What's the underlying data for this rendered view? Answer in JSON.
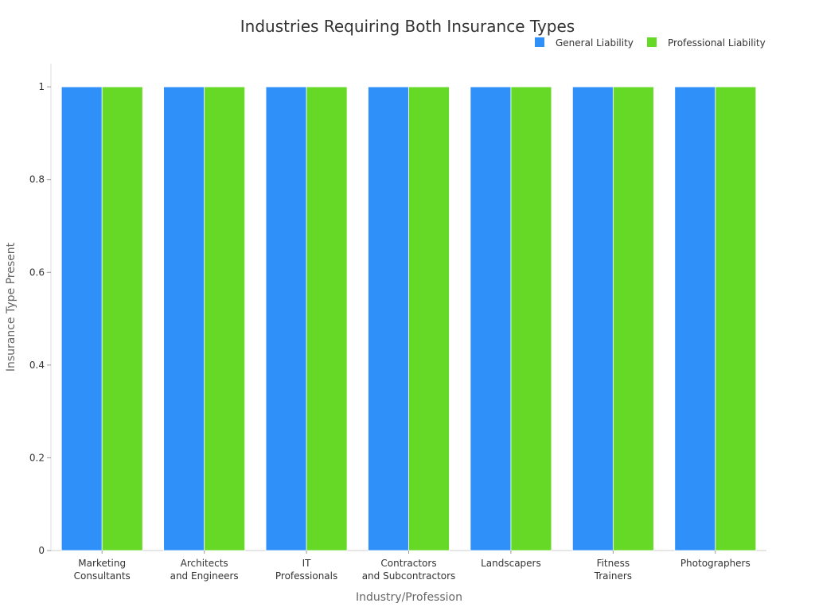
{
  "chart_data": {
    "type": "bar",
    "title": "Industries Requiring Both Insurance Types",
    "xlabel": "Industry/Profession",
    "ylabel": "Insurance Type Present",
    "categories": [
      [
        "Marketing",
        "Consultants"
      ],
      [
        "Architects",
        "and Engineers"
      ],
      [
        "IT",
        "Professionals"
      ],
      [
        "Contractors",
        "and Subcontractors"
      ],
      [
        "Landscapers"
      ],
      [
        "Fitness",
        "Trainers"
      ],
      [
        "Photographers"
      ]
    ],
    "series": [
      {
        "name": "General Liability",
        "color": "#2E90F8",
        "values": [
          1,
          1,
          1,
          1,
          1,
          1,
          1
        ]
      },
      {
        "name": "Professional Liability",
        "color": "#66D926",
        "values": [
          1,
          1,
          1,
          1,
          1,
          1,
          1
        ]
      }
    ],
    "ylim": [
      0,
      1.05
    ],
    "yticks": [
      0,
      0.2,
      0.4,
      0.6,
      0.8,
      1
    ],
    "ytick_labels": [
      "0",
      "0.2",
      "0.4",
      "0.6",
      "0.8",
      "1"
    ],
    "grid": false,
    "legend_position": "top-right"
  }
}
